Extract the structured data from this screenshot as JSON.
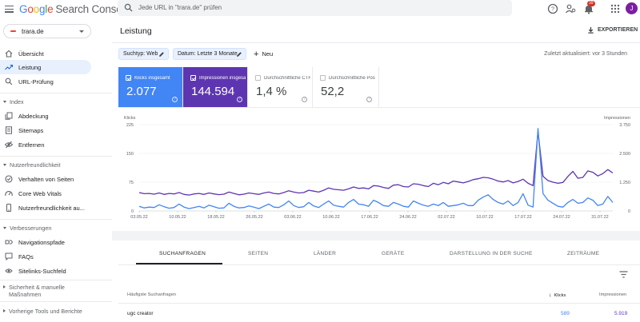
{
  "app": {
    "logo_google": [
      "G",
      "o",
      "o",
      "g",
      "l",
      "e"
    ],
    "product": "Search Console",
    "search_placeholder": "Jede URL in \"trara.de\" prüfen",
    "notification_count": "39",
    "avatar_letter": "J",
    "icons": [
      "menu-icon",
      "search-icon",
      "help-icon",
      "account-settings-icon",
      "notifications-icon",
      "apps-icon"
    ]
  },
  "property": {
    "name": "trara.de"
  },
  "sidebar": {
    "top_items": [
      {
        "label": "Übersicht",
        "icon": "home-icon"
      },
      {
        "label": "Leistung",
        "icon": "trending-up-icon",
        "active": true
      },
      {
        "label": "URL-Prüfung",
        "icon": "search-icon"
      }
    ],
    "sections": [
      {
        "title": "Index",
        "open": true,
        "items": [
          {
            "label": "Abdeckung",
            "icon": "file-copy-icon"
          },
          {
            "label": "Sitemaps",
            "icon": "sitemap-icon"
          },
          {
            "label": "Entfernen",
            "icon": "eye-off-icon"
          }
        ]
      },
      {
        "title": "Nutzerfreundlichkeit",
        "open": true,
        "items": [
          {
            "label": "Verhalten von Seiten",
            "icon": "page-experience-icon"
          },
          {
            "label": "Core Web Vitals",
            "icon": "speed-icon"
          },
          {
            "label": "Nutzerfreundlichkeit au...",
            "icon": "smartphone-icon"
          }
        ]
      },
      {
        "title": "Verbesserungen",
        "open": true,
        "items": [
          {
            "label": "Navigationspfade",
            "icon": "breadcrumb-icon"
          },
          {
            "label": "FAQs",
            "icon": "faq-icon"
          },
          {
            "label": "Sitelinks-Suchfeld",
            "icon": "sitelinks-search-icon"
          }
        ]
      },
      {
        "title": "Sicherheit & manuelle Maßnahmen",
        "open": false,
        "items": []
      },
      {
        "title": "Vorherige Tools und Berichte",
        "open": false,
        "items": []
      }
    ]
  },
  "header": {
    "title": "Leistung",
    "export_label": "EXPORTIEREN",
    "chips": [
      "Suchtyp: Web",
      "Datum: Letzte 3 Monate"
    ],
    "new_label": "Neu",
    "updated": "Zuletzt aktualisiert: vor 3 Stunden"
  },
  "metrics": [
    {
      "label": "Klicks insgesamt",
      "value": "2.077",
      "selected": true,
      "color": "#4285f4"
    },
    {
      "label": "Impressionen insgesamt",
      "value": "144.594",
      "selected": true,
      "color": "#5e35b1"
    },
    {
      "label": "Durchschnittliche CTR",
      "value": "1,4 %",
      "selected": false
    },
    {
      "label": "Durchschnittliche Position",
      "value": "52,2",
      "selected": false
    }
  ],
  "chart_data": {
    "type": "line",
    "x_ticks": [
      "03.05.22",
      "10.05.22",
      "18.05.22",
      "26.05.22",
      "03.06.22",
      "10.06.22",
      "17.06.22",
      "24.06.22",
      "02.07.22",
      "10.07.22",
      "17.07.22",
      "24.07.22",
      "31.07.22"
    ],
    "left_axis": {
      "label": "Klicks",
      "ticks": [
        "0",
        "75",
        "150",
        "225"
      ],
      "ylim": [
        0,
        225
      ]
    },
    "right_axis": {
      "label": "Impressionen",
      "ticks": [
        "0",
        "1.250",
        "2.500",
        "3.750"
      ],
      "ylim": [
        0,
        3750
      ]
    },
    "series": [
      {
        "name": "Klicks",
        "axis": "left",
        "color": "#4285f4",
        "values": [
          12,
          8,
          10,
          9,
          16,
          11,
          7,
          9,
          18,
          10,
          6,
          9,
          12,
          8,
          15,
          11,
          7,
          8,
          20,
          12,
          8,
          9,
          13,
          10,
          6,
          12,
          18,
          10,
          9,
          16,
          26,
          14,
          9,
          11,
          22,
          13,
          9,
          18,
          26,
          15,
          12,
          10,
          22,
          30,
          18,
          16,
          12,
          28,
          22,
          14,
          12,
          22,
          18,
          12,
          10,
          26,
          20,
          15,
          12,
          18,
          14,
          22,
          12,
          14,
          16,
          20,
          14,
          14,
          28,
          36,
          42,
          30,
          22,
          18,
          26,
          14,
          22,
          45,
          15,
          10,
          215,
          45,
          28,
          20,
          12,
          10,
          22,
          30,
          20,
          22,
          34,
          28,
          14,
          18,
          38,
          22
        ]
      },
      {
        "name": "Impressionen",
        "axis": "right",
        "color": "#5e35b1",
        "values": [
          800,
          750,
          760,
          730,
          780,
          720,
          760,
          740,
          800,
          720,
          690,
          740,
          760,
          720,
          780,
          740,
          710,
          730,
          820,
          760,
          700,
          730,
          780,
          750,
          720,
          780,
          820,
          760,
          740,
          800,
          880,
          820,
          780,
          800,
          900,
          860,
          820,
          900,
          1000,
          940,
          920,
          900,
          960,
          1040,
          980,
          1000,
          960,
          1100,
          1080,
          1020,
          980,
          1120,
          1140,
          1060,
          1040,
          1180,
          1160,
          1100,
          1060,
          1200,
          1140,
          1240,
          1180,
          1300,
          1260,
          1220,
          1280,
          1360,
          1400,
          1460,
          1440,
          1380,
          1300,
          1260,
          1320,
          1220,
          1280,
          1380,
          1200,
          1100,
          3450,
          1500,
          1320,
          1250,
          1200,
          1240,
          1500,
          1720,
          1420,
          1460,
          1740,
          1680,
          1520,
          1620,
          1800,
          1650
        ]
      }
    ]
  },
  "tabs": [
    "SUCHANFRAGEN",
    "SEITEN",
    "LÄNDER",
    "GERÄTE",
    "DARSTELLUNG IN DER SUCHE",
    "ZEITRÄUME"
  ],
  "table": {
    "headers": {
      "query": "Häufigste Suchanfragen",
      "clicks": "Klicks",
      "impressions": "Impressionen"
    },
    "rows": [
      {
        "query": "ugc creator",
        "clicks": "589",
        "impressions": "5.919"
      }
    ]
  }
}
